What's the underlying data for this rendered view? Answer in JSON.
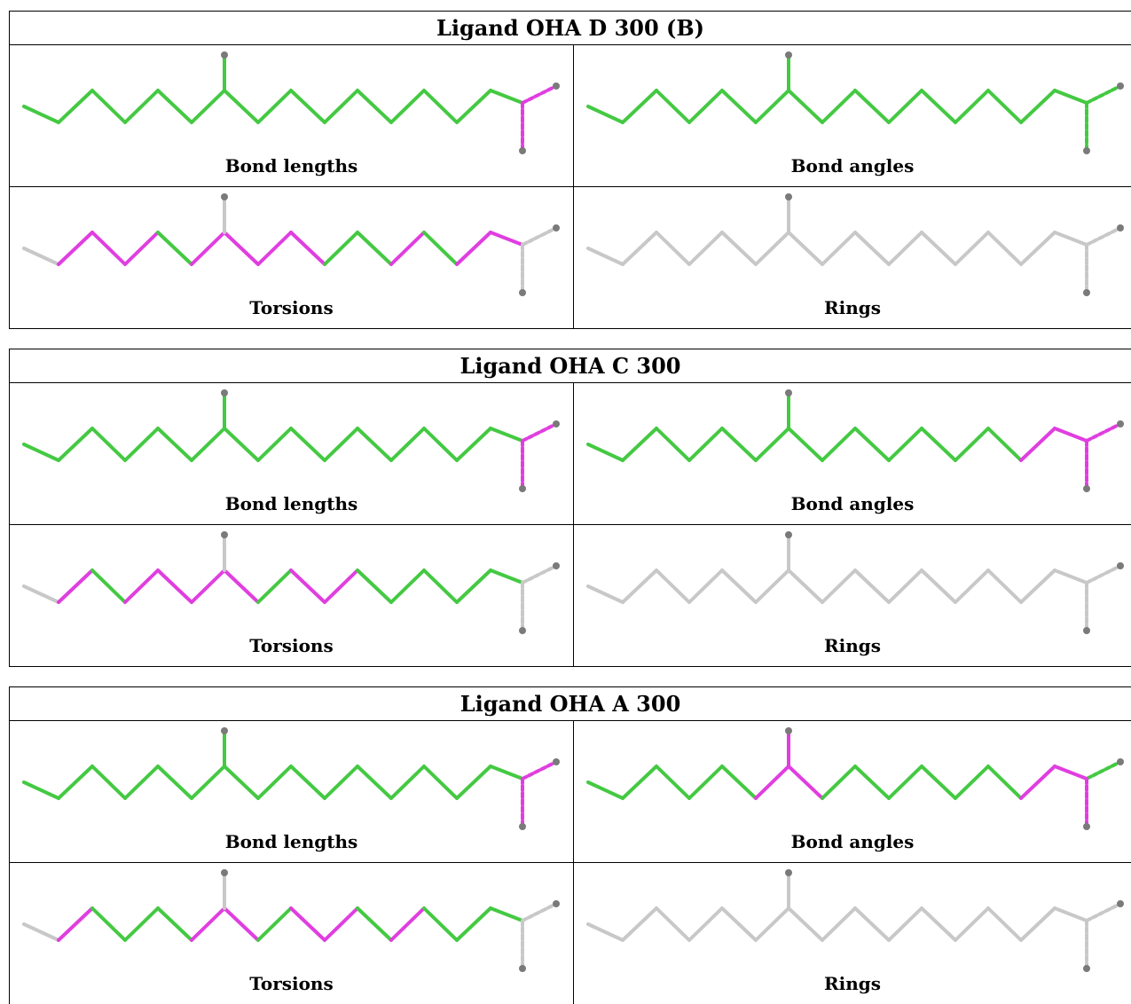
{
  "colors": {
    "good": "#44c942",
    "outlier": "#e03ee0",
    "neutral": "#c8c8c8",
    "atom": "#7a7a7a"
  },
  "blocks": [
    {
      "title": "Ligand OHA D 300 (B)",
      "panels": [
        {
          "caption": "Bond lengths",
          "chain": [
            "g",
            "g",
            "g",
            "g",
            "g",
            "g",
            "g",
            "g",
            "g",
            "g",
            "g",
            "g",
            "g",
            "g"
          ],
          "stem": "g",
          "end1": "m",
          "end2": "m"
        },
        {
          "caption": "Bond angles",
          "chain": [
            "g",
            "g",
            "g",
            "g",
            "g",
            "g",
            "g",
            "g",
            "g",
            "g",
            "g",
            "g",
            "g",
            "g"
          ],
          "stem": "g",
          "end1": "g",
          "end2": "g"
        },
        {
          "caption": "Torsions",
          "chain": [
            "n",
            "m",
            "m",
            "m",
            "g",
            "m",
            "m",
            "m",
            "m",
            "g",
            "g",
            "m",
            "g",
            "m"
          ],
          "stem": "n",
          "end1": "n",
          "end2": "n"
        },
        {
          "caption": "Rings",
          "chain": [
            "n",
            "n",
            "n",
            "n",
            "n",
            "n",
            "n",
            "n",
            "n",
            "n",
            "n",
            "n",
            "n",
            "n"
          ],
          "stem": "n",
          "end1": "n",
          "end2": "n"
        }
      ]
    },
    {
      "title": "Ligand OHA C 300",
      "panels": [
        {
          "caption": "Bond lengths",
          "chain": [
            "g",
            "g",
            "g",
            "g",
            "g",
            "g",
            "g",
            "g",
            "g",
            "g",
            "g",
            "g",
            "g",
            "g"
          ],
          "stem": "g",
          "end1": "m",
          "end2": "m"
        },
        {
          "caption": "Bond angles",
          "chain": [
            "g",
            "g",
            "g",
            "g",
            "g",
            "g",
            "g",
            "g",
            "g",
            "g",
            "g",
            "g",
            "g",
            "m"
          ],
          "stem": "g",
          "end1": "m",
          "end2": "m"
        },
        {
          "caption": "Torsions",
          "chain": [
            "n",
            "m",
            "g",
            "m",
            "m",
            "m",
            "m",
            "g",
            "m",
            "m",
            "g",
            "g",
            "g",
            "g"
          ],
          "stem": "n",
          "end1": "n",
          "end2": "n"
        },
        {
          "caption": "Rings",
          "chain": [
            "n",
            "n",
            "n",
            "n",
            "n",
            "n",
            "n",
            "n",
            "n",
            "n",
            "n",
            "n",
            "n",
            "n"
          ],
          "stem": "n",
          "end1": "n",
          "end2": "n"
        }
      ]
    },
    {
      "title": "Ligand OHA A 300",
      "panels": [
        {
          "caption": "Bond lengths",
          "chain": [
            "g",
            "g",
            "g",
            "g",
            "g",
            "g",
            "g",
            "g",
            "g",
            "g",
            "g",
            "g",
            "g",
            "g"
          ],
          "stem": "g",
          "end1": "m",
          "end2": "m"
        },
        {
          "caption": "Bond angles",
          "chain": [
            "g",
            "g",
            "g",
            "g",
            "g",
            "m",
            "m",
            "g",
            "g",
            "g",
            "g",
            "g",
            "g",
            "m"
          ],
          "stem": "m",
          "end1": "g",
          "end2": "m"
        },
        {
          "caption": "Torsions",
          "chain": [
            "n",
            "m",
            "g",
            "g",
            "g",
            "m",
            "m",
            "g",
            "m",
            "m",
            "g",
            "m",
            "g",
            "g"
          ],
          "stem": "n",
          "end1": "n",
          "end2": "n"
        },
        {
          "caption": "Rings",
          "chain": [
            "n",
            "n",
            "n",
            "n",
            "n",
            "n",
            "n",
            "n",
            "n",
            "n",
            "n",
            "n",
            "n",
            "n"
          ],
          "stem": "n",
          "end1": "n",
          "end2": "n"
        }
      ]
    }
  ]
}
